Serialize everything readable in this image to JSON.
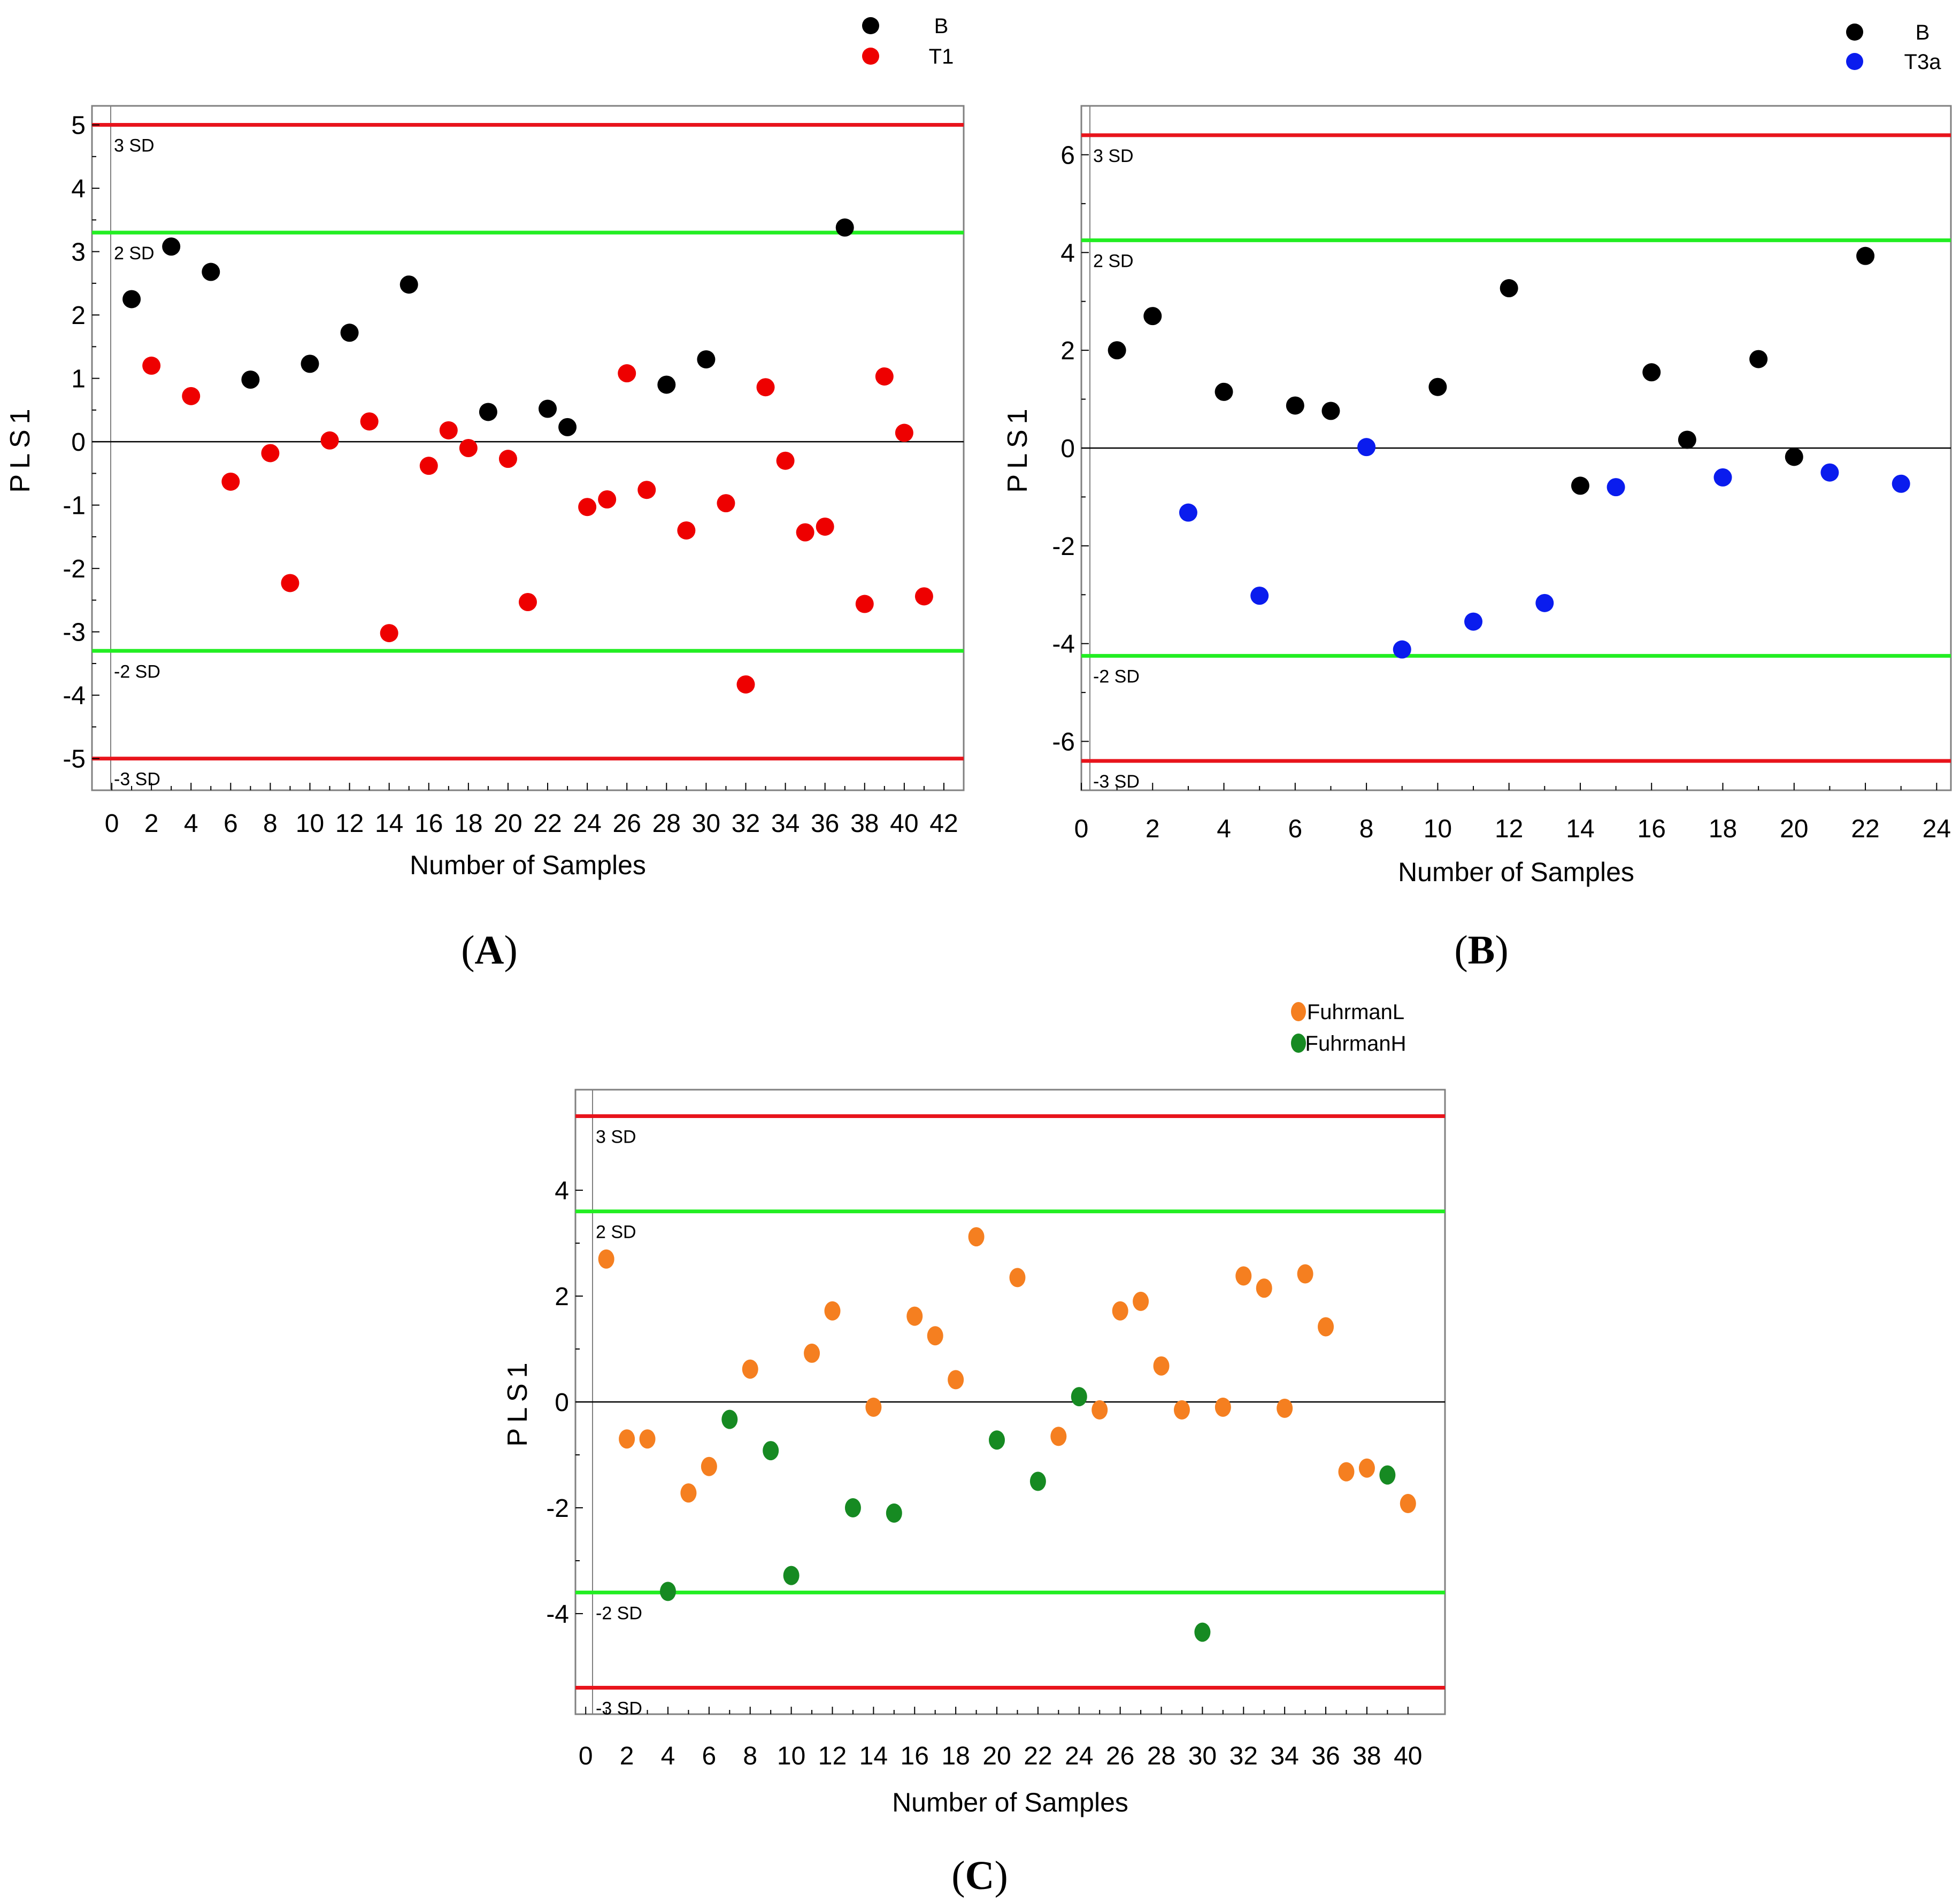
{
  "figure": {
    "colors": {
      "sd3": "#e8141c",
      "sd2": "#22ee22",
      "zero": "#000000",
      "frame": "#808080",
      "B": "#000000",
      "T1": "#ee0000",
      "T3a": "#0a1cee",
      "FuhrmanL": "#f57f20",
      "FuhrmanH": "#168a22"
    }
  },
  "chart_data": [
    {
      "id": "A",
      "type": "scatter",
      "panel_label_open": "(",
      "panel_label_letter": "A",
      "panel_label_close": ")",
      "xlabel": "Number of Samples",
      "ylabel": "PLS1",
      "xlim": [
        -1,
        43
      ],
      "ylim": [
        -5.5,
        5.3
      ],
      "x_ticks": [
        0,
        2,
        4,
        6,
        8,
        10,
        12,
        14,
        16,
        18,
        20,
        22,
        24,
        26,
        28,
        30,
        32,
        34,
        36,
        38,
        40,
        42
      ],
      "x_tick_labels": [
        "0",
        "2",
        "4",
        "6",
        "8",
        "10",
        "12",
        "14",
        "16",
        "18",
        "20",
        "22",
        "24",
        "26",
        "28",
        "30",
        "32",
        "34",
        "36",
        "38",
        "40",
        "42"
      ],
      "y_ticks": [
        -5,
        -4,
        -3,
        -2,
        -1,
        0,
        1,
        2,
        3,
        4,
        5
      ],
      "y_tick_labels": [
        "-5",
        "-4",
        "-3",
        "-2",
        "-1",
        "0",
        "1",
        "2",
        "3",
        "4",
        "5"
      ],
      "sd_lines": [
        {
          "value": 5.0,
          "label": "3 SD",
          "kind": "sd3"
        },
        {
          "value": 3.3,
          "label": "2 SD",
          "kind": "sd2"
        },
        {
          "value": -3.3,
          "label": "-2 SD",
          "kind": "sd2"
        },
        {
          "value": -5.0,
          "label": "-3 SD",
          "kind": "sd3"
        }
      ],
      "legend": [
        {
          "name": "B",
          "color_key": "B"
        },
        {
          "name": "T1",
          "color_key": "T1"
        }
      ],
      "series": [
        {
          "name": "B",
          "color_key": "B",
          "points": [
            [
              1,
              2.25
            ],
            [
              3,
              3.08
            ],
            [
              5,
              2.68
            ],
            [
              7,
              0.98
            ],
            [
              10,
              1.23
            ],
            [
              12,
              1.72
            ],
            [
              15,
              2.48
            ],
            [
              19,
              0.47
            ],
            [
              22,
              0.52
            ],
            [
              23,
              0.23
            ],
            [
              28,
              0.9
            ],
            [
              30,
              1.3
            ],
            [
              37,
              3.38
            ]
          ]
        },
        {
          "name": "T1",
          "color_key": "T1",
          "points": [
            [
              2,
              1.2
            ],
            [
              4,
              0.72
            ],
            [
              6,
              -0.63
            ],
            [
              8,
              -0.18
            ],
            [
              9,
              -2.23
            ],
            [
              11,
              0.02
            ],
            [
              13,
              0.32
            ],
            [
              14,
              -3.02
            ],
            [
              16,
              -0.38
            ],
            [
              17,
              0.18
            ],
            [
              18,
              -0.1
            ],
            [
              20,
              -0.27
            ],
            [
              21,
              -2.53
            ],
            [
              24,
              -1.03
            ],
            [
              25,
              -0.91
            ],
            [
              26,
              1.08
            ],
            [
              27,
              -0.76
            ],
            [
              29,
              -1.4
            ],
            [
              31,
              -0.97
            ],
            [
              32,
              -3.83
            ],
            [
              33,
              0.86
            ],
            [
              34,
              -0.3
            ],
            [
              35,
              -1.43
            ],
            [
              36,
              -1.34
            ],
            [
              38,
              -2.56
            ],
            [
              39,
              1.03
            ],
            [
              40,
              0.14
            ],
            [
              41,
              -2.44
            ]
          ]
        }
      ]
    },
    {
      "id": "B",
      "type": "scatter",
      "panel_label_open": "(",
      "panel_label_letter": "B",
      "panel_label_close": ")",
      "xlabel": "Number of Samples",
      "ylabel": "PLS1",
      "xlim": [
        0,
        24.4
      ],
      "ylim": [
        -7.0,
        7.0
      ],
      "x_ticks": [
        0,
        2,
        4,
        6,
        8,
        10,
        12,
        14,
        16,
        18,
        20,
        22,
        24
      ],
      "x_tick_labels": [
        "0",
        "2",
        "4",
        "6",
        "8",
        "10",
        "12",
        "14",
        "16",
        "18",
        "20",
        "22",
        "24"
      ],
      "y_ticks": [
        -6,
        -4,
        -2,
        0,
        2,
        4,
        6
      ],
      "y_tick_labels": [
        "-6",
        "-4",
        "-2",
        "0",
        "2",
        "4",
        "6"
      ],
      "sd_lines": [
        {
          "value": 6.4,
          "label": "3 SD",
          "kind": "sd3"
        },
        {
          "value": 4.25,
          "label": "2 SD",
          "kind": "sd2"
        },
        {
          "value": -4.25,
          "label": "-2 SD",
          "kind": "sd2"
        },
        {
          "value": -6.4,
          "label": "-3 SD",
          "kind": "sd3"
        }
      ],
      "legend": [
        {
          "name": "B",
          "color_key": "B"
        },
        {
          "name": "T3a",
          "color_key": "T3a"
        }
      ],
      "series": [
        {
          "name": "B",
          "color_key": "B",
          "points": [
            [
              1,
              2.0
            ],
            [
              2,
              2.7
            ],
            [
              4,
              1.15
            ],
            [
              6,
              0.87
            ],
            [
              7,
              0.76
            ],
            [
              10,
              1.25
            ],
            [
              12,
              3.27
            ],
            [
              14,
              -0.77
            ],
            [
              16,
              1.55
            ],
            [
              17,
              0.17
            ],
            [
              19,
              1.82
            ],
            [
              20,
              -0.18
            ],
            [
              22,
              3.93
            ]
          ]
        },
        {
          "name": "T3a",
          "color_key": "T3a",
          "points": [
            [
              3,
              -1.32
            ],
            [
              5,
              -3.02
            ],
            [
              8,
              0.02
            ],
            [
              9,
              -4.12
            ],
            [
              11,
              -3.55
            ],
            [
              13,
              -3.17
            ],
            [
              15,
              -0.8
            ],
            [
              18,
              -0.6
            ],
            [
              21,
              -0.5
            ],
            [
              23,
              -0.73
            ]
          ]
        }
      ]
    },
    {
      "id": "C",
      "type": "scatter",
      "panel_label_open": "(",
      "panel_label_letter": "C",
      "panel_label_close": ")",
      "xlabel": "Number of Samples",
      "ylabel": "PLS1",
      "xlim": [
        -0.5,
        41.8
      ],
      "ylim": [
        -5.9,
        5.9
      ],
      "x_ticks": [
        0,
        2,
        4,
        6,
        8,
        10,
        12,
        14,
        16,
        18,
        20,
        22,
        24,
        26,
        28,
        30,
        32,
        34,
        36,
        38,
        40
      ],
      "x_tick_labels": [
        "0",
        "2",
        "4",
        "6",
        "8",
        "10",
        "12",
        "14",
        "16",
        "18",
        "20",
        "22",
        "24",
        "26",
        "28",
        "30",
        "32",
        "34",
        "36",
        "38",
        "40"
      ],
      "y_ticks": [
        -4,
        -2,
        0,
        2,
        4
      ],
      "y_tick_labels": [
        "-4",
        "-2",
        "0",
        "2",
        "4"
      ],
      "sd_lines": [
        {
          "value": 5.4,
          "label": "3 SD",
          "kind": "sd3"
        },
        {
          "value": 3.6,
          "label": "2 SD",
          "kind": "sd2"
        },
        {
          "value": -3.6,
          "label": "-2 SD",
          "kind": "sd2"
        },
        {
          "value": -5.4,
          "label": "-3 SD",
          "kind": "sd3"
        }
      ],
      "legend": [
        {
          "name": "FuhrmanL",
          "color_key": "FuhrmanL"
        },
        {
          "name": "FuhrmanH",
          "color_key": "FuhrmanH"
        }
      ],
      "series": [
        {
          "name": "FuhrmanL",
          "color_key": "FuhrmanL",
          "points": [
            [
              1,
              2.7
            ],
            [
              2,
              -0.7
            ],
            [
              3,
              -0.7
            ],
            [
              5,
              -1.72
            ],
            [
              6,
              -1.22
            ],
            [
              8,
              0.62
            ],
            [
              11,
              0.92
            ],
            [
              12,
              1.72
            ],
            [
              14,
              -0.1
            ],
            [
              16,
              1.62
            ],
            [
              17,
              1.25
            ],
            [
              18,
              0.42
            ],
            [
              19,
              3.12
            ],
            [
              21,
              2.35
            ],
            [
              23,
              -0.65
            ],
            [
              25,
              -0.15
            ],
            [
              26,
              1.72
            ],
            [
              27,
              1.9
            ],
            [
              28,
              0.68
            ],
            [
              29,
              -0.15
            ],
            [
              31,
              -0.1
            ],
            [
              32,
              2.38
            ],
            [
              33,
              2.15
            ],
            [
              34,
              -0.12
            ],
            [
              35,
              2.42
            ],
            [
              36,
              1.42
            ],
            [
              37,
              -1.32
            ],
            [
              38,
              -1.25
            ],
            [
              40,
              -1.92
            ]
          ]
        },
        {
          "name": "FuhrmanH",
          "color_key": "FuhrmanH",
          "points": [
            [
              4,
              -3.58
            ],
            [
              7,
              -0.33
            ],
            [
              9,
              -0.92
            ],
            [
              10,
              -3.28
            ],
            [
              13,
              -2.0
            ],
            [
              15,
              -2.1
            ],
            [
              20,
              -0.72
            ],
            [
              22,
              -1.5
            ],
            [
              24,
              0.1
            ],
            [
              30,
              -4.35
            ],
            [
              39,
              -1.38
            ]
          ]
        }
      ]
    }
  ]
}
